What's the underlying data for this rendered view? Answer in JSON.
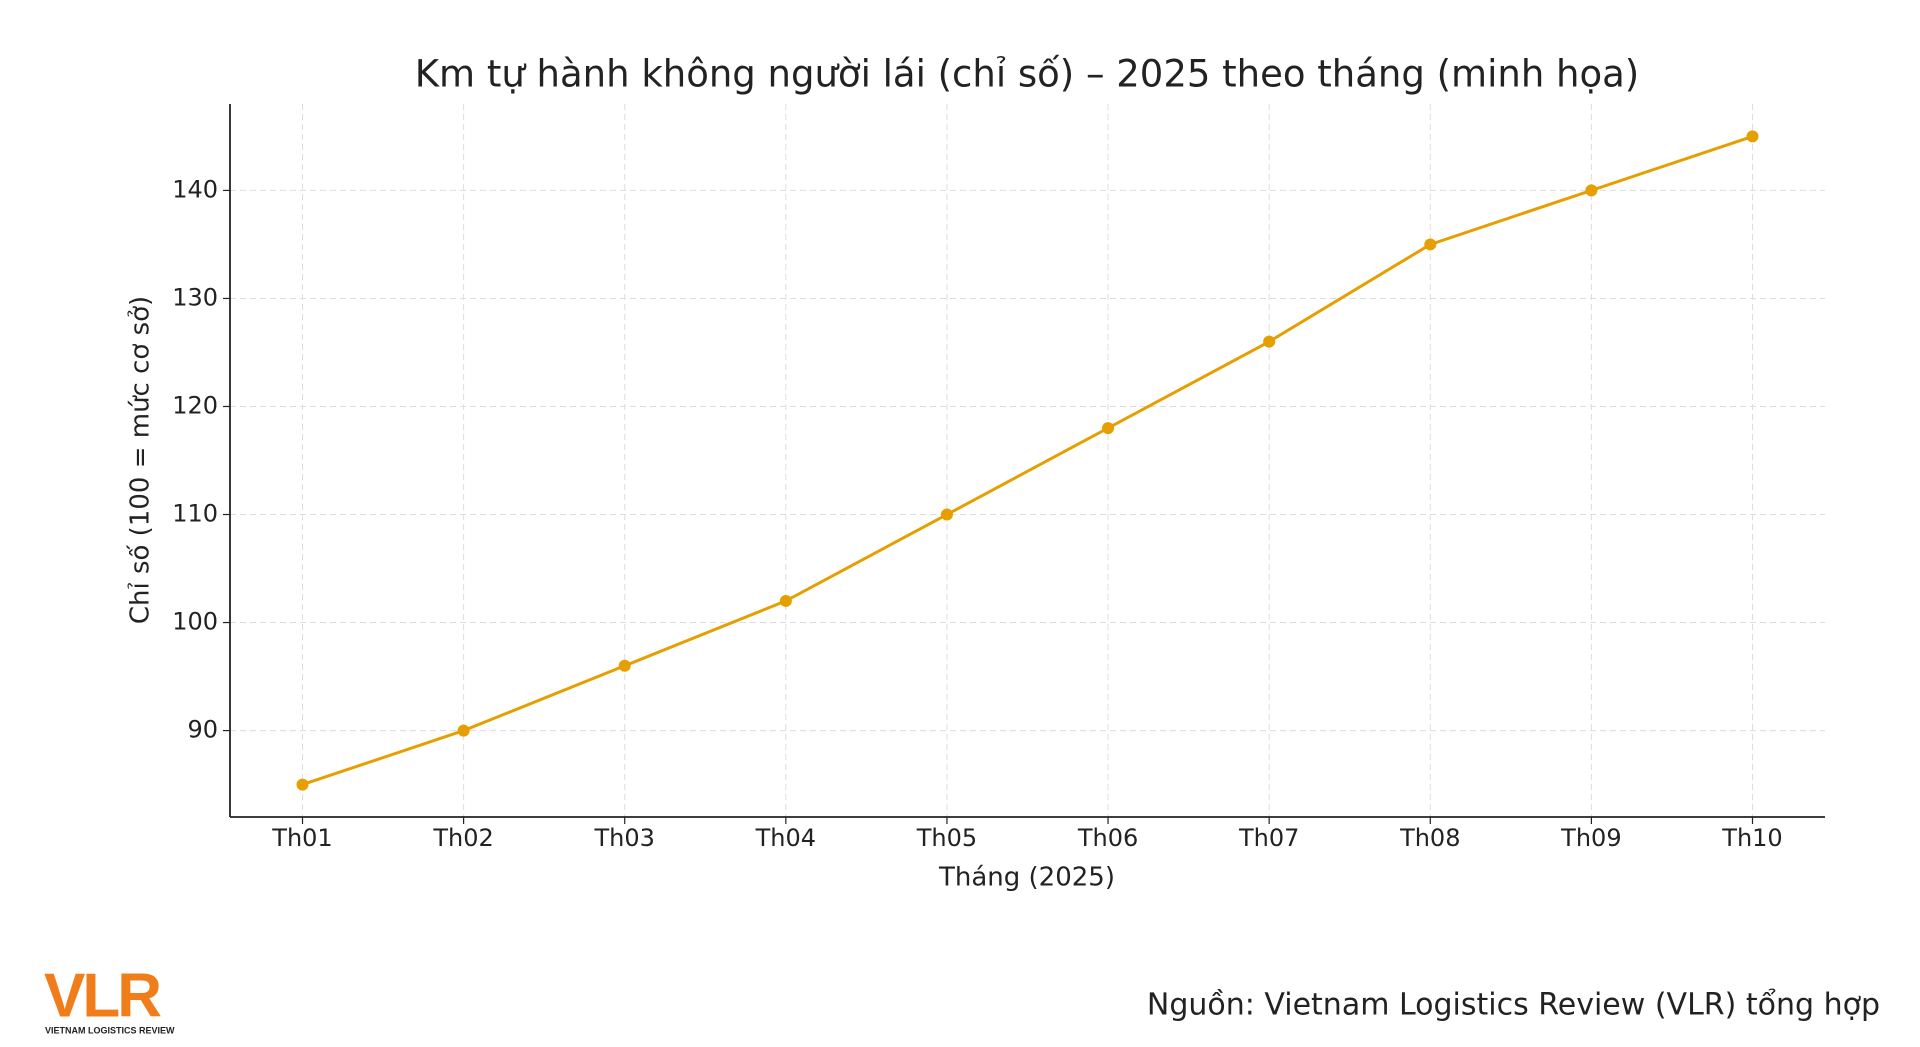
{
  "chart_data": {
    "type": "line",
    "title": "Km tự hành không người lái (chỉ số) – 2025 theo tháng (minh họa)",
    "x_label": "Tháng (2025)",
    "y_label": "Chỉ số (100 = mức cơ sở)",
    "categories": [
      "Th01",
      "Th02",
      "Th03",
      "Th04",
      "Th05",
      "Th06",
      "Th07",
      "Th08",
      "Th09",
      "Th10"
    ],
    "values": [
      85,
      90,
      96,
      102,
      110,
      118,
      126,
      135,
      140,
      145
    ],
    "color": "#e69f00",
    "ylim": [
      82,
      148
    ],
    "yticks": [
      90,
      100,
      110,
      120,
      130,
      140
    ],
    "grid": true,
    "source": "Nguồn: Vietnam Logistics Review (VLR) tổng hợp",
    "logo": "VLR",
    "logo_subtitle": "VIETNAM LOGISTICS REVIEW"
  }
}
